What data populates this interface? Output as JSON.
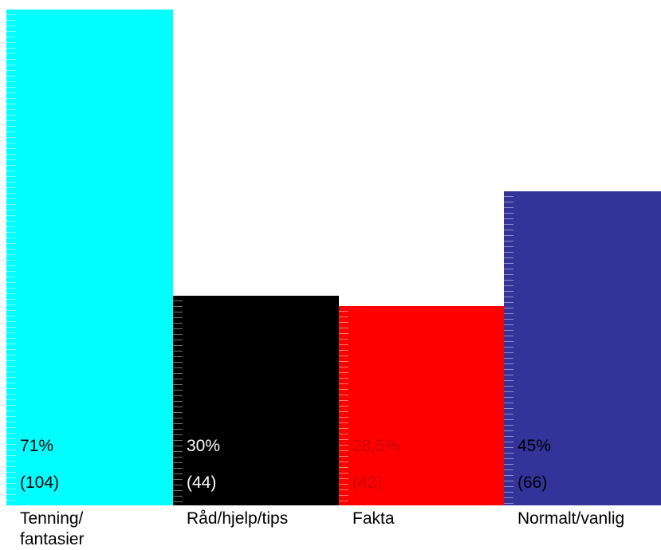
{
  "chart_data": {
    "type": "bar",
    "categories": [
      "Tenning/\nfantasier",
      "Råd/hjelp/tips",
      "Fakta",
      "Normalt/vanlig"
    ],
    "values": [
      71,
      30,
      28.5,
      45
    ],
    "value_labels": [
      "71%",
      "30%",
      "28,5%",
      "45%"
    ],
    "count_labels": [
      "(104)",
      "(44)",
      "(42)",
      "(66)"
    ],
    "colors": [
      "#00ffff",
      "#000000",
      "#ff0000",
      "#333399"
    ],
    "label_colors": [
      "#000000",
      "#ffffff",
      "#cc0000",
      "#000000"
    ],
    "ylim": [
      0,
      71
    ],
    "title": "",
    "xlabel": "",
    "ylabel": "",
    "grid": false,
    "legend": "none"
  }
}
